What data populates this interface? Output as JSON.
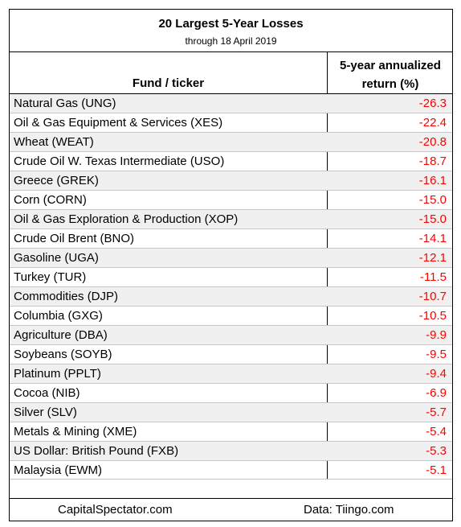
{
  "title": "20 Largest 5-Year Losses",
  "subtitle": "through 18 April 2019",
  "columns": {
    "fund": "Fund / ticker",
    "return_line1": "5-year annualized",
    "return_line2": "return (%)"
  },
  "rows": [
    {
      "fund": "Natural Gas (UNG)",
      "ret": "-26.3"
    },
    {
      "fund": "Oil & Gas Equipment & Services (XES)",
      "ret": "-22.4"
    },
    {
      "fund": "Wheat (WEAT)",
      "ret": "-20.8"
    },
    {
      "fund": "Crude Oil W. Texas Intermediate (USO)",
      "ret": "-18.7"
    },
    {
      "fund": "Greece (GREK)",
      "ret": "-16.1"
    },
    {
      "fund": "Corn (CORN)",
      "ret": "-15.0"
    },
    {
      "fund": "Oil & Gas Exploration & Production (XOP)",
      "ret": "-15.0"
    },
    {
      "fund": "Crude Oil Brent (BNO)",
      "ret": "-14.1"
    },
    {
      "fund": "Gasoline (UGA)",
      "ret": "-12.1"
    },
    {
      "fund": "Turkey (TUR)",
      "ret": "-11.5"
    },
    {
      "fund": "Commodities (DJP)",
      "ret": "-10.7"
    },
    {
      "fund": "Columbia (GXG)",
      "ret": "-10.5"
    },
    {
      "fund": "Agriculture (DBA)",
      "ret": "-9.9"
    },
    {
      "fund": "Soybeans (SOYB)",
      "ret": "-9.5"
    },
    {
      "fund": "Platinum (PPLT)",
      "ret": "-9.4"
    },
    {
      "fund": "Cocoa (NIB)",
      "ret": "-6.9"
    },
    {
      "fund": "Silver (SLV)",
      "ret": "-5.7"
    },
    {
      "fund": "Metals & Mining (XME)",
      "ret": "-5.4"
    },
    {
      "fund": "US Dollar: British Pound (FXB)",
      "ret": "-5.3"
    },
    {
      "fund": "Malaysia (EWM)",
      "ret": "-5.1"
    }
  ],
  "footer": {
    "left": "CapitalSpectator.com",
    "right": "Data: Tiingo.com"
  },
  "colors": {
    "negative_value": "#ff0000",
    "row_shade": "#f0f0f0"
  },
  "chart_data": {
    "type": "table",
    "title": "20 Largest 5-Year Losses",
    "subtitle": "through 18 April 2019",
    "columns": [
      "Fund / ticker",
      "5-year annualized return (%)"
    ],
    "categories": [
      "Natural Gas (UNG)",
      "Oil & Gas Equipment & Services (XES)",
      "Wheat (WEAT)",
      "Crude Oil W. Texas Intermediate (USO)",
      "Greece (GREK)",
      "Corn (CORN)",
      "Oil & Gas Exploration & Production (XOP)",
      "Crude Oil Brent (BNO)",
      "Gasoline (UGA)",
      "Turkey (TUR)",
      "Commodities (DJP)",
      "Columbia (GXG)",
      "Agriculture (DBA)",
      "Soybeans (SOYB)",
      "Platinum (PPLT)",
      "Cocoa (NIB)",
      "Silver (SLV)",
      "Metals & Mining (XME)",
      "US Dollar: British Pound (FXB)",
      "Malaysia (EWM)"
    ],
    "values": [
      -26.3,
      -22.4,
      -20.8,
      -18.7,
      -16.1,
      -15.0,
      -15.0,
      -14.1,
      -12.1,
      -11.5,
      -10.7,
      -10.5,
      -9.9,
      -9.5,
      -9.4,
      -6.9,
      -5.7,
      -5.4,
      -5.3,
      -5.1
    ]
  }
}
